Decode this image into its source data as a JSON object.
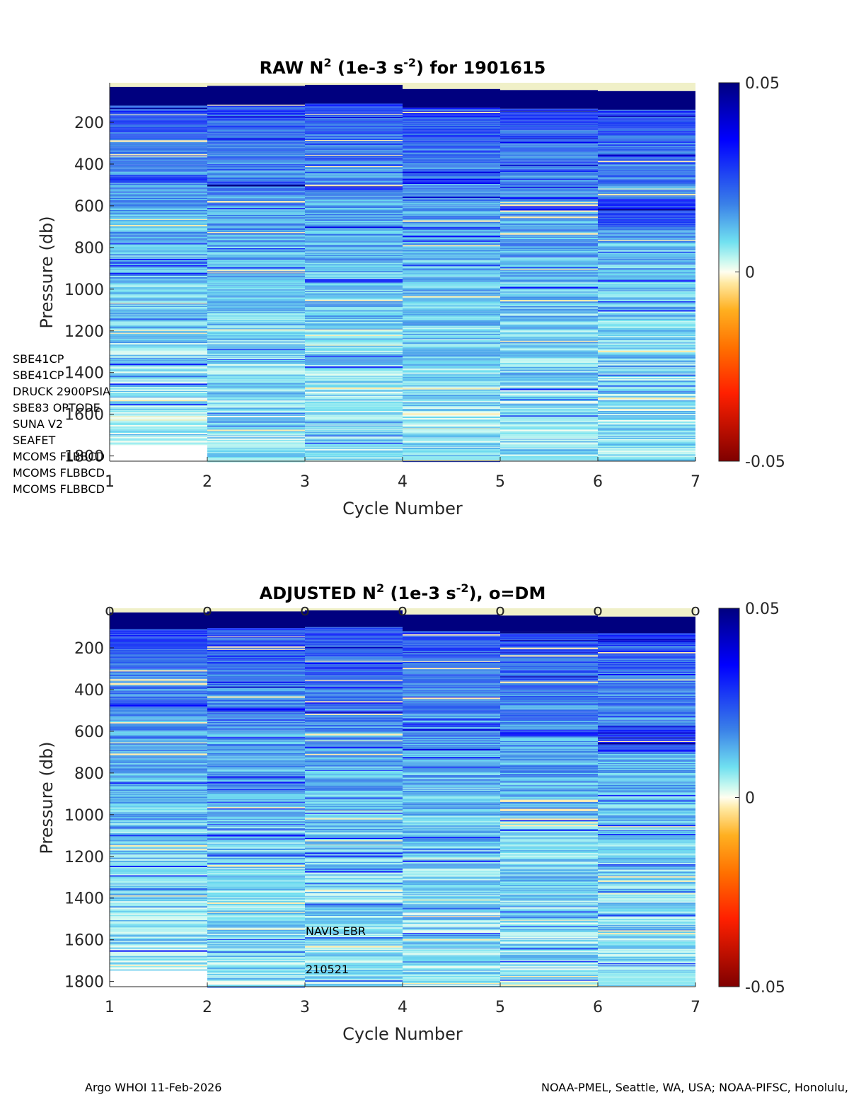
{
  "chart_data": [
    {
      "type": "heatmap",
      "id": "raw",
      "title_parts": [
        "RAW N",
        "2",
        " (1e-3 s",
        "-2",
        ") for 1901615"
      ],
      "xlabel": "Cycle Number",
      "ylabel": "Pressure (db)",
      "xlim": [
        1,
        7
      ],
      "ylim": [
        1825,
        10
      ],
      "y_reversed": true,
      "xticks": [
        "1",
        "2",
        "3",
        "4",
        "5",
        "6",
        "7"
      ],
      "yticks": [
        "200",
        "400",
        "600",
        "800",
        "1000",
        "1200",
        "1400",
        "1600",
        "1800"
      ],
      "colorbar": {
        "min": -0.05,
        "max": 0.05,
        "ticks": [
          "0.05",
          "0",
          "-0.05"
        ]
      },
      "columns": [
        {
          "cycle_from": 1,
          "cycle_to": 2,
          "top_surface": 30,
          "deep_band_bottom": 120,
          "max_pressure": 1745,
          "mid_band": [
            450,
            490
          ]
        },
        {
          "cycle_from": 2,
          "cycle_to": 3,
          "top_surface": 25,
          "deep_band_bottom": 115,
          "max_pressure": 1825,
          "mid_band": [
            480,
            500
          ]
        },
        {
          "cycle_from": 3,
          "cycle_to": 4,
          "top_surface": 20,
          "deep_band_bottom": 110,
          "max_pressure": 1825,
          "mid_band": [
            500,
            520
          ]
        },
        {
          "cycle_from": 4,
          "cycle_to": 5,
          "top_surface": 40,
          "deep_band_bottom": 130,
          "max_pressure": 1825,
          "mid_band": [
            470,
            490
          ]
        },
        {
          "cycle_from": 5,
          "cycle_to": 6,
          "top_surface": 45,
          "deep_band_bottom": 135,
          "max_pressure": 1825,
          "mid_band": [
            600,
            620
          ]
        },
        {
          "cycle_from": 6,
          "cycle_to": 7,
          "top_surface": 50,
          "deep_band_bottom": 140,
          "max_pressure": 1825,
          "mid_band": [
            560,
            700
          ]
        }
      ]
    },
    {
      "type": "heatmap",
      "id": "adjusted",
      "title_parts": [
        "ADJUSTED N",
        "2",
        " (1e-3 s",
        "-2",
        "), o=DM"
      ],
      "xlabel": "Cycle Number",
      "ylabel": "Pressure (db)",
      "xlim": [
        1,
        7
      ],
      "ylim": [
        1825,
        10
      ],
      "y_reversed": true,
      "xticks": [
        "1",
        "2",
        "3",
        "4",
        "5",
        "6",
        "7"
      ],
      "yticks": [
        "200",
        "400",
        "600",
        "800",
        "1000",
        "1200",
        "1400",
        "1600",
        "1800"
      ],
      "colorbar": {
        "min": -0.05,
        "max": 0.05,
        "ticks": [
          "0.05",
          "0",
          "-0.05"
        ]
      },
      "dm_markers": [
        1,
        2,
        3,
        4,
        5,
        6,
        7
      ],
      "dm_marker_symbol": "o",
      "columns": [
        {
          "cycle_from": 1,
          "cycle_to": 2,
          "top_surface": 30,
          "deep_band_bottom": 110,
          "max_pressure": 1745,
          "mid_band": [
            450,
            480
          ]
        },
        {
          "cycle_from": 2,
          "cycle_to": 3,
          "top_surface": 25,
          "deep_band_bottom": 105,
          "max_pressure": 1825,
          "mid_band": [
            480,
            500
          ]
        },
        {
          "cycle_from": 3,
          "cycle_to": 4,
          "top_surface": 20,
          "deep_band_bottom": 100,
          "max_pressure": 1825,
          "mid_band": [
            500,
            520
          ]
        },
        {
          "cycle_from": 4,
          "cycle_to": 5,
          "top_surface": 40,
          "deep_band_bottom": 120,
          "max_pressure": 1825,
          "mid_band": [
            560,
            580
          ]
        },
        {
          "cycle_from": 5,
          "cycle_to": 6,
          "top_surface": 45,
          "deep_band_bottom": 125,
          "max_pressure": 1825,
          "mid_band": [
            600,
            620
          ]
        },
        {
          "cycle_from": 6,
          "cycle_to": 7,
          "top_surface": 50,
          "deep_band_bottom": 130,
          "max_pressure": 1825,
          "mid_band": [
            580,
            700
          ]
        }
      ]
    }
  ],
  "sensors": [
    "SBE41CP",
    "SBE41CP",
    "DRUCK 2900PSIA",
    "SBE83 OPTODE",
    "SUNA V2",
    "SEAFET",
    "MCOMS FLBBCD",
    "MCOMS FLBBCD",
    "MCOMS FLBBCD"
  ],
  "float_type": "NAVIS EBR",
  "float_id_text": "210521",
  "footer": {
    "left": "Argo WHOI 11-Feb-2026",
    "right": "NOAA-PMEL, Seattle, WA, USA; NOAA-PIFSC, Honolulu, HI"
  },
  "colors": {
    "deep_blue": "#00007f",
    "mid_blue": "#2040d0",
    "light_blue": "#50a0f0",
    "cyan": "#a0f0f0",
    "pale_yellow": "#f0f0c8",
    "orange": "#ff8000",
    "red": "#e00000",
    "dark_red": "#7f0000"
  }
}
